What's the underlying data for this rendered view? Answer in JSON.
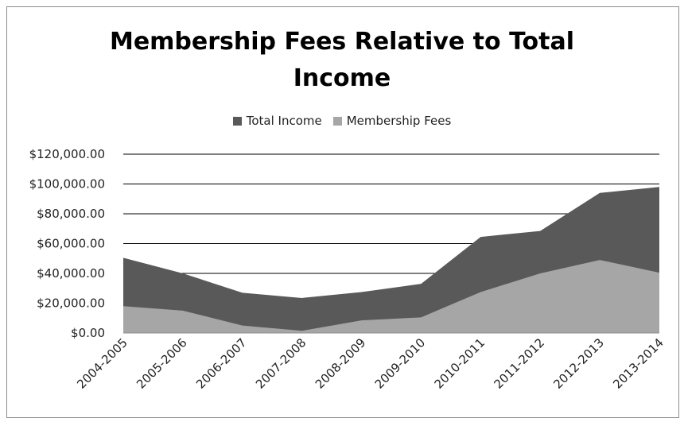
{
  "chart_data": {
    "type": "area",
    "title": "Membership Fees Relative to Total Income",
    "title_lines": [
      "Membership Fees Relative to Total",
      "Income"
    ],
    "categories": [
      "2004-2005",
      "2005-2006",
      "2006-2007",
      "2007-2008",
      "2008-2009",
      "2009-2010",
      "2010-2011",
      "2011-2012",
      "2012-2013",
      "2013-2014"
    ],
    "series": [
      {
        "name": "Total Income",
        "values": [
          50500,
          40000,
          27000,
          23500,
          27500,
          33000,
          64500,
          68500,
          94000,
          98000
        ],
        "color": "#595959"
      },
      {
        "name": "Membership Fees",
        "values": [
          18000,
          15000,
          5000,
          1500,
          8500,
          10500,
          27500,
          40000,
          49000,
          40500
        ],
        "color": "#a6a6a6"
      }
    ],
    "ylim": [
      0,
      120000
    ],
    "yticks": [
      "$0.00",
      "$20,000.00",
      "$40,000.00",
      "$60,000.00",
      "$80,000.00",
      "$100,000.00",
      "$120,000.00"
    ],
    "ytick_values": [
      0,
      20000,
      40000,
      60000,
      80000,
      100000,
      120000
    ],
    "grid": true,
    "legend_position": "top-center",
    "xlabel": "",
    "ylabel": ""
  }
}
